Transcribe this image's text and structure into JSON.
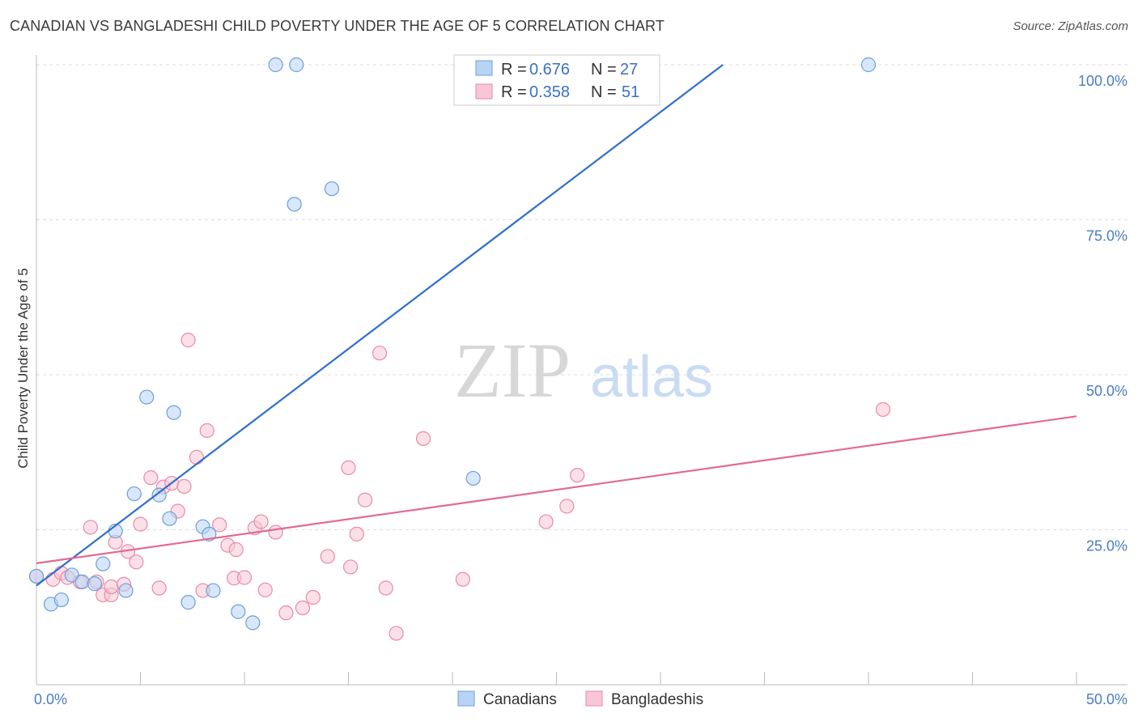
{
  "title": "CANADIAN VS BANGLADESHI CHILD POVERTY UNDER THE AGE OF 5 CORRELATION CHART",
  "source": "Source: ZipAtlas.com",
  "watermark": {
    "zip": "ZIP",
    "atlas": "atlas"
  },
  "colors": {
    "canadians_fill": "#b8d4f5",
    "canadians_stroke": "#6e9fd8",
    "canadians_line": "#2f6fcf",
    "bangladeshis_fill": "#f8c6d6",
    "bangladeshis_stroke": "#e98aa8",
    "bangladeshis_line": "#e26a93",
    "grid": "#dddddd",
    "tick_label": "#4a7cc4"
  },
  "legend_top": {
    "rows": [
      {
        "r_label": "R =",
        "r_value": "0.676",
        "n_label": "N =",
        "n_value": "27"
      },
      {
        "r_label": "R =",
        "r_value": "0.358",
        "n_label": "N =",
        "n_value": "51"
      }
    ]
  },
  "legend_bottom": [
    "Canadians",
    "Bangladeshis"
  ],
  "chart_data": {
    "type": "scatter",
    "title": "CANADIAN VS BANGLADESHI CHILD POVERTY UNDER THE AGE OF 5 CORRELATION CHART",
    "xlabel": "",
    "ylabel": "Child Poverty Under the Age of 5",
    "xlim": [
      0,
      50
    ],
    "ylim": [
      0,
      105
    ],
    "x_tick_labels": [
      "0.0%",
      "50.0%"
    ],
    "y_ticks": [
      25,
      50,
      75,
      100
    ],
    "y_tick_labels": [
      "25.0%",
      "50.0%",
      "75.0%",
      "100.0%"
    ],
    "grid": true,
    "legend_placement": "top-center",
    "series": [
      {
        "name": "Canadians",
        "r": 0.676,
        "n": 27,
        "trend": {
          "x0": 0.0,
          "y0": 16.0,
          "x1": 33.0,
          "y1": 100.0
        },
        "points": [
          [
            0.0,
            17.5
          ],
          [
            0.7,
            13.0
          ],
          [
            1.2,
            13.7
          ],
          [
            1.7,
            17.7
          ],
          [
            2.2,
            16.6
          ],
          [
            2.8,
            16.3
          ],
          [
            3.2,
            19.5
          ],
          [
            3.8,
            24.8
          ],
          [
            4.3,
            15.2
          ],
          [
            4.7,
            30.8
          ],
          [
            5.3,
            46.4
          ],
          [
            5.9,
            30.6
          ],
          [
            6.4,
            26.8
          ],
          [
            6.6,
            43.9
          ],
          [
            7.3,
            13.3
          ],
          [
            8.0,
            25.5
          ],
          [
            8.3,
            24.3
          ],
          [
            8.5,
            15.2
          ],
          [
            9.7,
            11.8
          ],
          [
            10.4,
            10.0
          ],
          [
            12.4,
            77.5
          ],
          [
            14.2,
            80.0
          ],
          [
            12.5,
            100.0
          ],
          [
            11.5,
            100.0
          ],
          [
            21.0,
            33.3
          ],
          [
            21.5,
            100.0
          ],
          [
            40.0,
            100.0
          ]
        ]
      },
      {
        "name": "Bangladeshis",
        "r": 0.358,
        "n": 51,
        "trend": {
          "x0": 0.0,
          "y0": 19.6,
          "x1": 50.0,
          "y1": 43.3
        },
        "points": [
          [
            0.0,
            17.5
          ],
          [
            0.8,
            17.0
          ],
          [
            1.2,
            18.0
          ],
          [
            1.5,
            17.3
          ],
          [
            2.1,
            16.6
          ],
          [
            2.6,
            25.4
          ],
          [
            2.9,
            16.6
          ],
          [
            3.2,
            14.5
          ],
          [
            3.6,
            14.5
          ],
          [
            3.6,
            15.8
          ],
          [
            3.8,
            23.0
          ],
          [
            4.2,
            16.2
          ],
          [
            4.4,
            21.5
          ],
          [
            4.8,
            19.8
          ],
          [
            5.0,
            25.9
          ],
          [
            5.5,
            33.4
          ],
          [
            5.9,
            15.6
          ],
          [
            6.1,
            31.9
          ],
          [
            6.5,
            32.5
          ],
          [
            6.8,
            28.0
          ],
          [
            7.1,
            32.0
          ],
          [
            7.3,
            55.6
          ],
          [
            7.7,
            36.7
          ],
          [
            8.0,
            15.2
          ],
          [
            8.2,
            41.0
          ],
          [
            8.8,
            25.8
          ],
          [
            9.2,
            22.5
          ],
          [
            9.5,
            17.2
          ],
          [
            9.6,
            21.8
          ],
          [
            10.0,
            17.3
          ],
          [
            10.5,
            25.3
          ],
          [
            10.8,
            26.3
          ],
          [
            11.0,
            15.3
          ],
          [
            11.5,
            24.6
          ],
          [
            12.0,
            11.6
          ],
          [
            12.8,
            12.4
          ],
          [
            13.3,
            14.1
          ],
          [
            14.0,
            20.7
          ],
          [
            15.0,
            35.0
          ],
          [
            15.1,
            19.0
          ],
          [
            15.4,
            24.3
          ],
          [
            15.8,
            29.8
          ],
          [
            16.5,
            53.5
          ],
          [
            16.8,
            15.6
          ],
          [
            17.3,
            8.3
          ],
          [
            18.6,
            39.7
          ],
          [
            24.5,
            26.3
          ],
          [
            25.5,
            28.8
          ],
          [
            26.0,
            33.8
          ],
          [
            40.7,
            44.4
          ],
          [
            20.5,
            17.0
          ]
        ]
      }
    ]
  }
}
